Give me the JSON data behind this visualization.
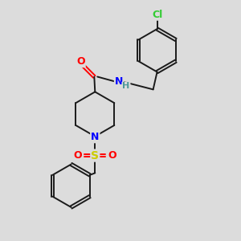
{
  "background_color": "#dcdcdc",
  "bond_color": "#1a1a1a",
  "atom_colors": {
    "O": "#ff0000",
    "N": "#0000ff",
    "S": "#cccc00",
    "Cl": "#33cc33",
    "C": "#1a1a1a",
    "H": "#4d9999"
  },
  "figsize": [
    3.0,
    3.0
  ],
  "dpi": 100,
  "lw": 1.4,
  "ring_r": 23,
  "pip_r": 28
}
